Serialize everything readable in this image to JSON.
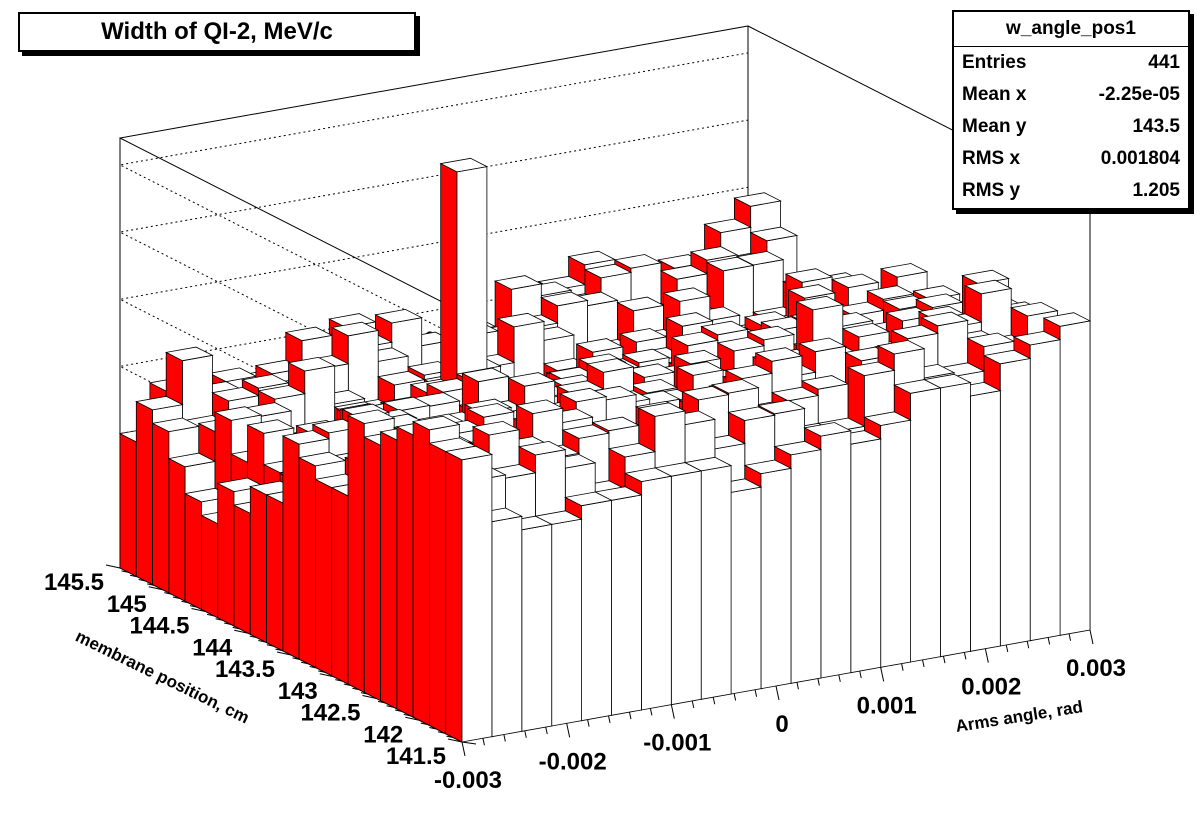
{
  "title": "Width of QI-2, MeV/c",
  "stats": {
    "name": "w_angle_pos1",
    "rows": [
      {
        "label": "Entries",
        "value": "441"
      },
      {
        "label": "Mean x",
        "value": "-2.25e-05"
      },
      {
        "label": "Mean y",
        "value": "143.5"
      },
      {
        "label": "RMS x",
        "value": "0.001804"
      },
      {
        "label": "RMS y",
        "value": "1.205"
      }
    ]
  },
  "colors": {
    "front": "#ffffff",
    "side": "#ff0000",
    "outline": "#000000"
  },
  "chart_data": {
    "type": "lego",
    "title": "Width of QI-2, MeV/c",
    "xlabel": "Arms angle, rad",
    "ylabel": "membrane position, cm",
    "xlim": [
      -0.003,
      0.003
    ],
    "ylim": [
      141.5,
      145.5
    ],
    "zlim": [
      1.0,
      1.32
    ],
    "x_ticks": [
      "-0.003",
      "-0.002",
      "-0.001",
      "0",
      "0.001",
      "0.002",
      "0.003"
    ],
    "y_ticks": [
      "145.5",
      "145",
      "144.5",
      "144",
      "143.5",
      "143",
      "142.5",
      "142",
      "141.5"
    ],
    "z_ticks": [
      "1.05",
      "1.1",
      "1.15",
      "1.2",
      "1.25",
      "1.3"
    ],
    "grid": true,
    "nx": 21,
    "ny": 21,
    "front_row_values": [
      1.1,
      1.16,
      1.15,
      1.15,
      1.16,
      1.16,
      1.17,
      1.17,
      1.17,
      1.15,
      1.16,
      1.17,
      1.18,
      1.17,
      1.18,
      1.2,
      1.2,
      1.19,
      1.21,
      1.22,
      1.23
    ],
    "left_column_values": [
      1.21,
      1.21,
      1.22,
      1.21,
      1.2,
      1.19,
      1.2,
      1.14,
      1.14,
      1.15,
      1.16,
      1.11,
      1.11,
      1.09,
      1.1,
      1.07,
      1.08,
      1.1,
      1.12,
      1.13,
      1.1
    ],
    "peak_value": 1.3
  }
}
